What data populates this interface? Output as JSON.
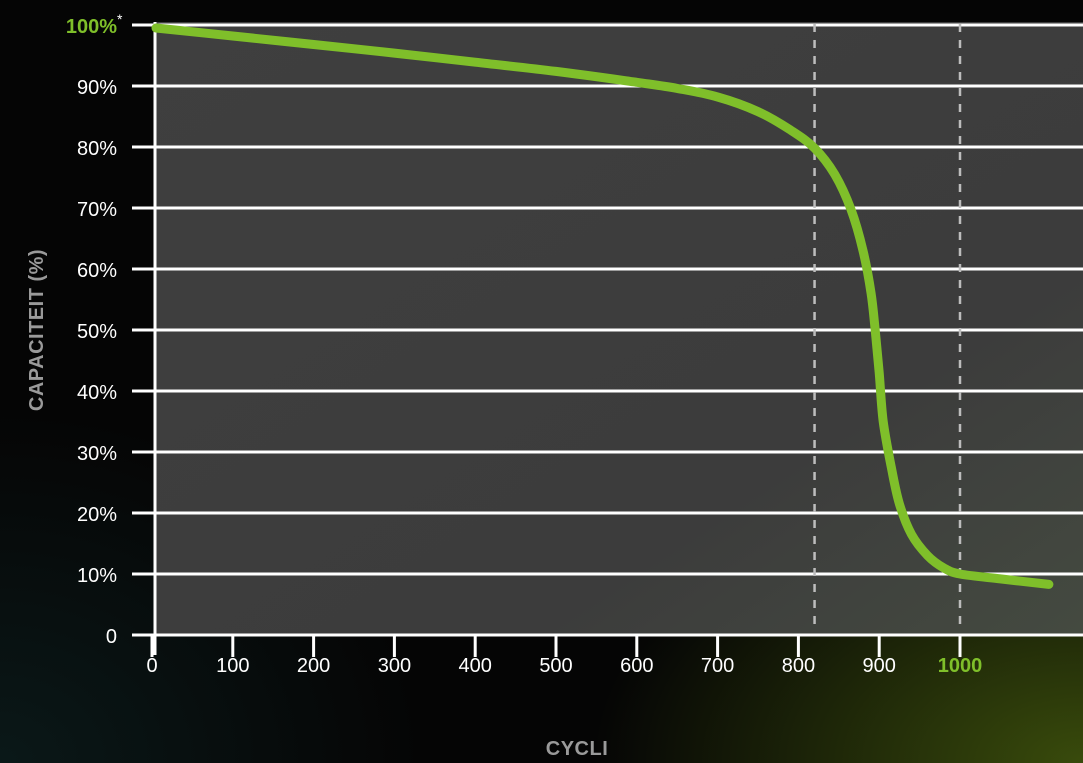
{
  "chart_data": {
    "type": "line",
    "xlabel": "CYCLI",
    "ylabel": "CAPACITEIT (%)",
    "xlim": [
      0,
      1110
    ],
    "ylim": [
      0,
      100
    ],
    "x_ticks": [
      {
        "value": 0,
        "label": "0"
      },
      {
        "value": 100,
        "label": "100"
      },
      {
        "value": 200,
        "label": "200"
      },
      {
        "value": 300,
        "label": "300"
      },
      {
        "value": 400,
        "label": "400"
      },
      {
        "value": 500,
        "label": "500"
      },
      {
        "value": 600,
        "label": "600"
      },
      {
        "value": 700,
        "label": "700"
      },
      {
        "value": 800,
        "label": "800"
      },
      {
        "value": 900,
        "label": "900"
      },
      {
        "value": 1000,
        "label": "1000",
        "highlight": true
      }
    ],
    "y_ticks": [
      {
        "value": 0,
        "label": "0"
      },
      {
        "value": 10,
        "label": "10%"
      },
      {
        "value": 20,
        "label": "20%"
      },
      {
        "value": 30,
        "label": "30%"
      },
      {
        "value": 40,
        "label": "40%"
      },
      {
        "value": 50,
        "label": "50%"
      },
      {
        "value": 60,
        "label": "60%"
      },
      {
        "value": 70,
        "label": "70%"
      },
      {
        "value": 80,
        "label": "80%"
      },
      {
        "value": 90,
        "label": "90%"
      },
      {
        "value": 100,
        "label": "100%",
        "highlight": true,
        "suffix": "*"
      }
    ],
    "reference_lines_x": [
      820,
      1000
    ],
    "series": [
      {
        "color": "#7fbf2a",
        "x": [
          5,
          100,
          200,
          300,
          400,
          500,
          600,
          650,
          700,
          750,
          790,
          820,
          845,
          865,
          880,
          890,
          895,
          900,
          905,
          915,
          925,
          940,
          960,
          980,
          1000,
          1050,
          1110
        ],
        "y": [
          99.5,
          98.2,
          96.8,
          95.4,
          93.9,
          92.4,
          90.6,
          89.6,
          88.2,
          85.8,
          82.8,
          79.8,
          75.5,
          69.8,
          63,
          56,
          50,
          43,
          35,
          27.5,
          21.5,
          16.5,
          13,
          11,
          10,
          9.2,
          8.3
        ]
      }
    ],
    "grid": true,
    "grid_axis": "y",
    "colors": {
      "plot_background": "#3d3d3d",
      "grid": "#ffffff",
      "line": "#7fbf2a",
      "highlight": "#7fbf2a",
      "axis_title": "#9a9a9a"
    }
  }
}
